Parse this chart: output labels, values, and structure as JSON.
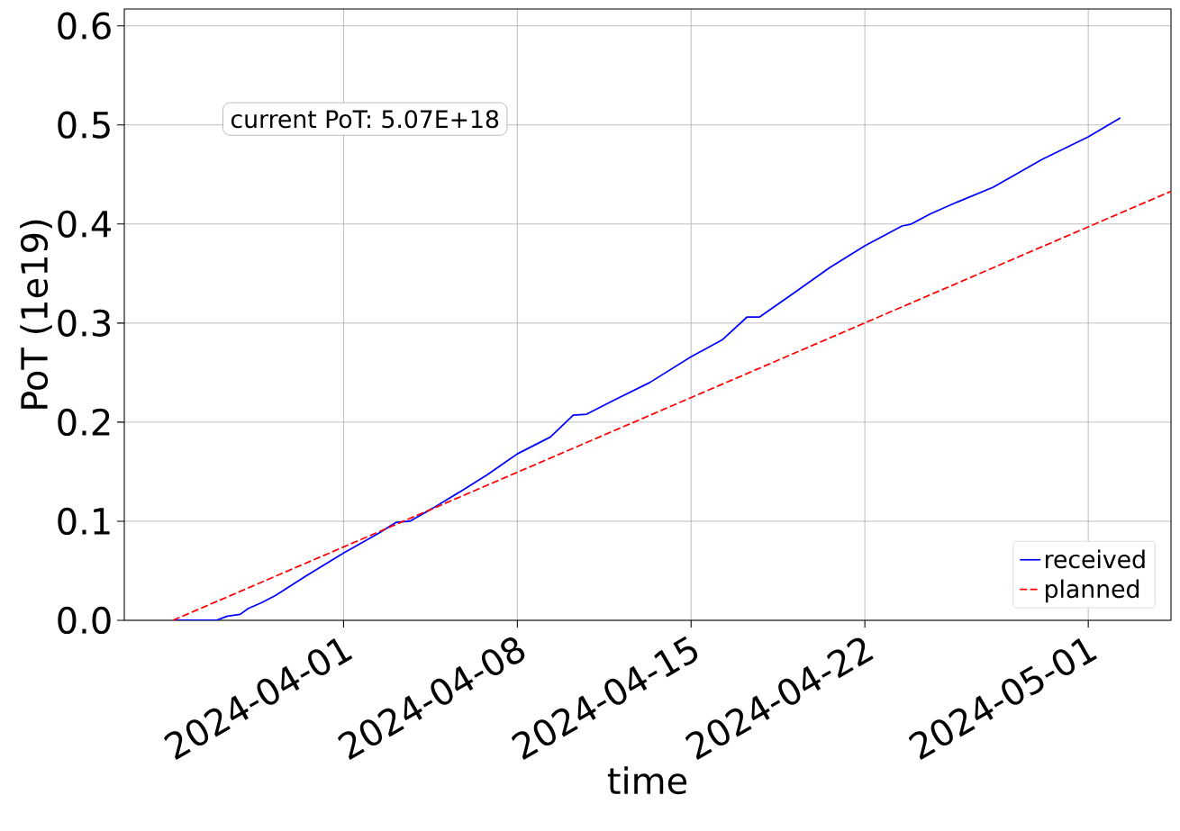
{
  "chart_data": {
    "type": "line",
    "xlabel": "time",
    "ylabel": "PoT (1e19)",
    "annotations": [
      "current PoT:  5.07E+18"
    ],
    "xlim": [
      "2024-03-23T04:00",
      "2024-05-04T08:00"
    ],
    "xticks": [
      "2024-04-01",
      "2024-04-08",
      "2024-04-15",
      "2024-04-22",
      "2024-05-01"
    ],
    "ylim": [
      0,
      0.617
    ],
    "yticks": [
      {
        "value": 0,
        "label": "0.0"
      },
      0.1,
      0.2,
      0.3,
      0.4,
      0.5,
      0.6
    ],
    "grid": true,
    "legend": "bottom right",
    "marker": "none",
    "series": [
      {
        "name": "received",
        "color": "#0000ff",
        "line_style": "solid",
        "x": [
          "2024-03-25T04:00",
          "2024-03-26T21:00",
          "2024-03-27T07:00",
          "2024-03-27T20:00",
          "2024-03-28T04:00",
          "2024-03-28T17:00",
          "2024-03-29T06:00",
          "2024-03-30T12:00",
          "2024-04-01T00:00",
          "2024-04-01T17:00",
          "2024-04-02T10:00",
          "2024-04-03T03:00",
          "2024-04-03T16:00",
          "2024-04-04T14:00",
          "2024-04-05T17:00",
          "2024-04-06T19:00",
          "2024-04-08T00:00",
          "2024-04-09T08:00",
          "2024-04-10T06:00",
          "2024-04-10T19:00",
          "2024-04-11T21:00",
          "2024-04-13T08:00",
          "2024-04-15T00:00",
          "2024-04-16T06:00",
          "2024-04-17T06:00",
          "2024-04-17T18:00",
          "2024-04-19T03:00",
          "2024-04-20T14:00",
          "2024-04-22T00:00",
          "2024-04-23T12:00",
          "2024-04-23T21:00",
          "2024-04-24T15:00",
          "2024-04-25T17:00",
          "2024-04-27T04:00",
          "2024-04-29T03:00",
          "2024-05-01T00:00",
          "2024-05-02T07:00"
        ],
        "values": [
          0,
          0,
          0.004,
          0.006,
          0.012,
          0.018,
          0.025,
          0.045,
          0.068,
          0.078,
          0.088,
          0.099,
          0.1,
          0.113,
          0.13,
          0.147,
          0.168,
          0.185,
          0.207,
          0.208,
          0.222,
          0.24,
          0.266,
          0.283,
          0.306,
          0.306,
          0.33,
          0.356,
          0.378,
          0.398,
          0.4,
          0.41,
          0.422,
          0.437,
          0.465,
          0.488,
          0.507
        ]
      },
      {
        "name": "planned",
        "color": "#ff0000",
        "line_style": "dashed",
        "x": [
          "2024-03-25T03:00",
          "2024-05-04T08:00"
        ],
        "values": [
          0,
          0.433
        ]
      }
    ]
  }
}
